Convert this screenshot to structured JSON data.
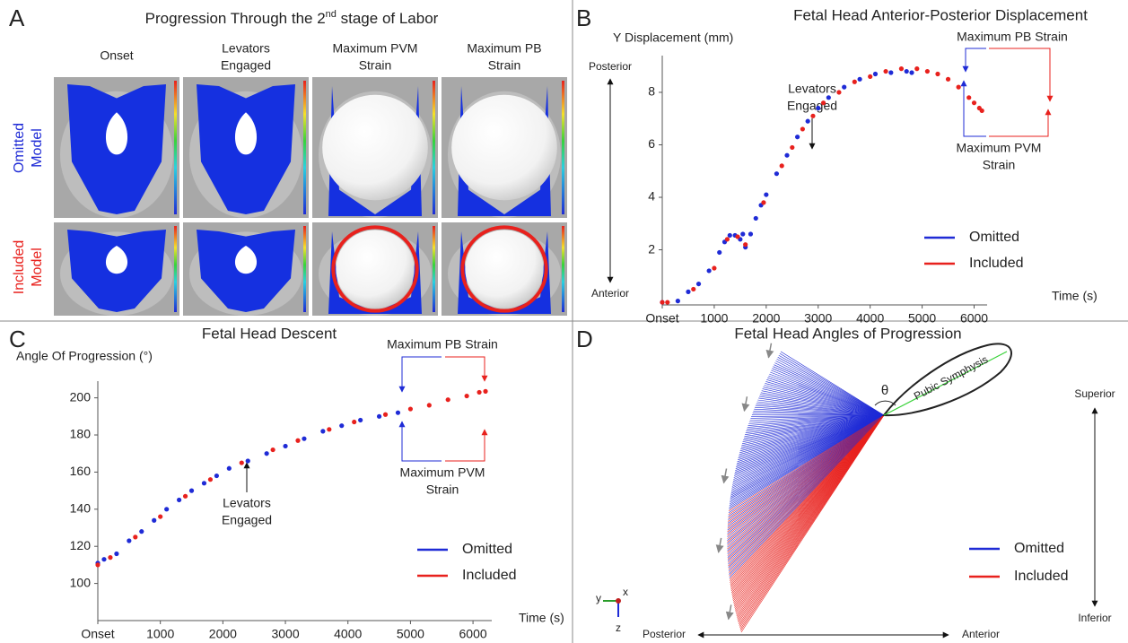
{
  "panel_labels": [
    "A",
    "B",
    "C",
    "D"
  ],
  "panel_a": {
    "title": [
      "Progression Through the 2",
      "nd",
      " stage of Labor"
    ],
    "columns": [
      [
        "Onset"
      ],
      [
        "Levators",
        "Engaged"
      ],
      [
        "Maximum PVM",
        "Strain"
      ],
      [
        "Maximum PB",
        "Strain"
      ]
    ],
    "rows": [
      [
        "Omitted",
        "Model"
      ],
      [
        "Included",
        "Model"
      ]
    ]
  },
  "chart_data": [
    {
      "type": "scatter",
      "title": "Fetal Head Anterior-Posterior Displacement",
      "y_label": "Y Displacement (mm)",
      "x_label": "Time (s)",
      "xlim": [
        0,
        6250
      ],
      "ylim": [
        -0.1,
        9.4
      ],
      "xticks": [
        {
          "value": 0,
          "label": "Onset"
        },
        1000,
        2000,
        3000,
        4000,
        5000,
        6000
      ],
      "yticks": [
        2,
        4,
        6,
        8
      ],
      "series": [
        {
          "name": "Omitted",
          "color": "#1f2bd6",
          "x": [
            0,
            300,
            500,
            700,
            900,
            1100,
            1200,
            1300,
            1400,
            1500,
            1550,
            1600,
            1700,
            1800,
            1900,
            2000,
            2200,
            2400,
            2600,
            2800,
            3000,
            3200,
            3500,
            3800,
            4100,
            4400,
            4700,
            4800
          ],
          "values": [
            0,
            0.05,
            0.4,
            0.7,
            1.2,
            1.9,
            2.3,
            2.55,
            2.55,
            2.4,
            2.6,
            2.1,
            2.6,
            3.2,
            3.7,
            4.1,
            4.9,
            5.6,
            6.3,
            6.9,
            7.4,
            7.8,
            8.2,
            8.5,
            8.7,
            8.75,
            8.8,
            8.75
          ]
        },
        {
          "name": "Included",
          "color": "#e8211d",
          "x": [
            0,
            100,
            600,
            1000,
            1250,
            1450,
            1600,
            1950,
            2300,
            2500,
            2700,
            2900,
            3100,
            3400,
            3700,
            4000,
            4300,
            4600,
            4900,
            5100,
            5300,
            5500,
            5700,
            5900,
            6000,
            6100,
            6150
          ],
          "values": [
            0,
            0,
            0.5,
            1.3,
            2.4,
            2.5,
            2.2,
            3.8,
            5.2,
            5.9,
            6.6,
            7.1,
            7.6,
            8.0,
            8.4,
            8.6,
            8.8,
            8.9,
            8.9,
            8.8,
            8.7,
            8.5,
            8.2,
            7.8,
            7.6,
            7.4,
            7.3
          ]
        }
      ],
      "annotations": {
        "levators": [
          "Levators",
          "Engaged"
        ],
        "pb": "Maximum PB Strain",
        "pvm": [
          "Maximum PVM",
          "Strain"
        ]
      },
      "side_labels": [
        "Posterior",
        "Anterior"
      ]
    },
    {
      "type": "scatter",
      "title": "Fetal Head Descent",
      "y_label": "Angle Of Progression (°)",
      "x_label": "Time (s)",
      "xlim": [
        0,
        6300
      ],
      "ylim": [
        80,
        209
      ],
      "xticks": [
        {
          "value": 0,
          "label": "Onset"
        },
        1000,
        2000,
        3000,
        4000,
        5000,
        6000
      ],
      "yticks": [
        100,
        120,
        140,
        160,
        180,
        200
      ],
      "series": [
        {
          "name": "Omitted",
          "color": "#1f2bd6",
          "x": [
            0,
            100,
            300,
            500,
            700,
            900,
            1100,
            1300,
            1500,
            1700,
            1900,
            2100,
            2400,
            2700,
            3000,
            3300,
            3600,
            3900,
            4200,
            4500,
            4800
          ],
          "values": [
            111,
            113,
            116,
            123,
            128,
            134,
            140,
            145,
            150,
            154,
            158,
            162,
            166,
            170,
            174,
            178,
            182,
            185,
            188,
            190,
            192
          ]
        },
        {
          "name": "Included",
          "color": "#e8211d",
          "x": [
            0,
            200,
            600,
            1000,
            1400,
            1800,
            2300,
            2800,
            3200,
            3700,
            4100,
            4600,
            5000,
            5300,
            5600,
            5900,
            6100,
            6200
          ],
          "values": [
            110,
            114,
            125,
            136,
            147,
            156,
            165,
            172,
            177,
            183,
            187,
            191,
            194,
            196,
            199,
            201,
            203,
            203.5
          ]
        }
      ],
      "annotations": {
        "levators": [
          "Levators",
          "Engaged"
        ],
        "pb": "Maximum PB Strain",
        "pvm": [
          "Maximum PVM",
          "Strain"
        ]
      }
    }
  ],
  "panel_d": {
    "title": "Fetal Head Angles of Progression",
    "symphysis": "Pubic Symphysis",
    "angle": "θ",
    "vertical": [
      "Superior",
      "Inferior"
    ],
    "horizontal": [
      "Posterior",
      "Anterior"
    ],
    "legend": [
      "Omitted",
      "Included"
    ],
    "axes": [
      "y",
      "x",
      "z"
    ]
  }
}
